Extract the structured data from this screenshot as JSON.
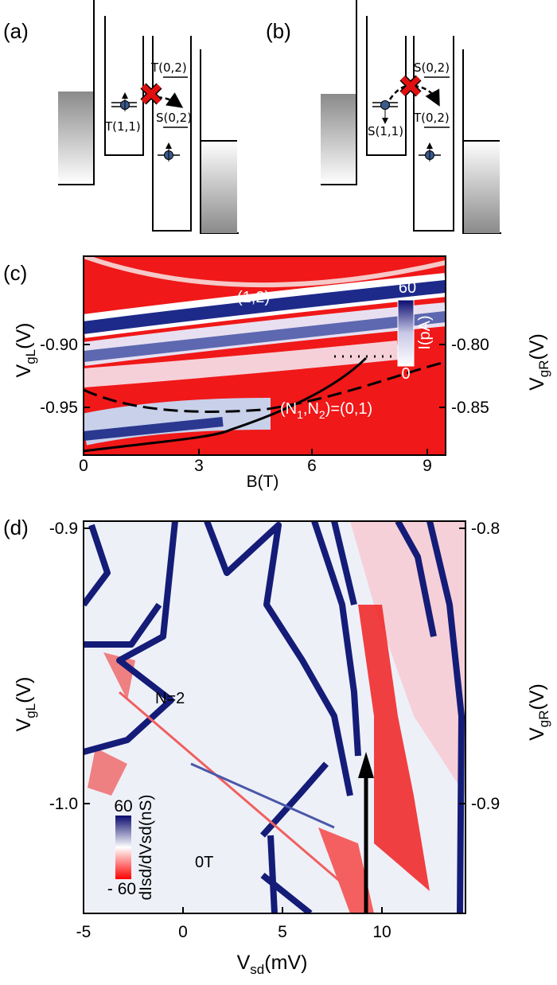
{
  "panel_a": {
    "label": "(a)",
    "levels": [
      "T(1,1)",
      "T(0,2)",
      "S(0,2)"
    ]
  },
  "panel_b": {
    "label": "(b)",
    "levels": [
      "S(1,1)",
      "S(0,2)",
      "T(0,2)"
    ]
  },
  "panel_c": {
    "label": "(c)",
    "x_ticks": [
      "0",
      "3",
      "6",
      "9"
    ],
    "x_label": "B(T)",
    "y_left_ticks": [
      "-0.90",
      "-0.95"
    ],
    "y_right_ticks": [
      "-0.80",
      "-0.85"
    ],
    "y_left_label": {
      "base": "V",
      "sub": "gL",
      "unit": "(V)"
    },
    "y_right_label": {
      "base": "V",
      "sub": "gR",
      "unit": "(V)"
    },
    "annotation_top": "(1,2)",
    "annotation_bottom": [
      "(N",
      "1",
      ",N",
      "2",
      ")=(0,1)"
    ],
    "colorbar": {
      "max": "60",
      "min": "0",
      "label": "I(pA)"
    }
  },
  "panel_d": {
    "label": "(d)",
    "x_ticks": [
      "-5",
      "0",
      "5",
      "10"
    ],
    "x_label": {
      "base": "V",
      "sub": "sd",
      "unit": "(mV)"
    },
    "y_left_ticks": [
      "-0.9",
      "-1.0"
    ],
    "y_right_ticks": [
      "-0.8",
      "-0.9"
    ],
    "y_left_label": {
      "base": "V",
      "sub": "gL",
      "unit": "(V)"
    },
    "y_right_label": {
      "base": "V",
      "sub": "gR",
      "unit": "(V)"
    },
    "annotation_n": "N=2",
    "annotation_field": "0T",
    "colorbar": {
      "max": "60",
      "min": "- 60",
      "label": "dIsd/dVsd(nS)"
    }
  }
}
